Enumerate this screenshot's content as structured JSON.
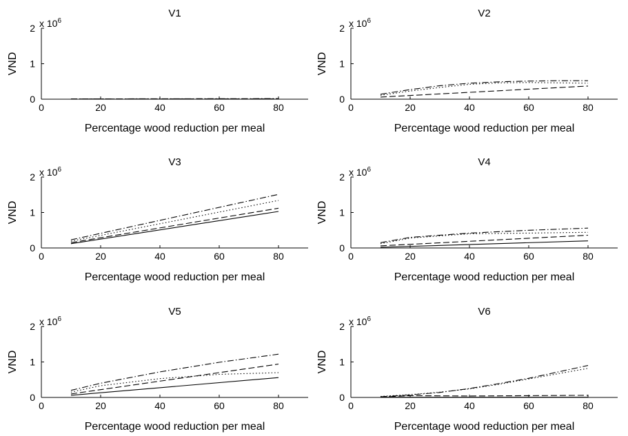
{
  "figure": {
    "scale_label": "x 10",
    "scale_exponent": "6"
  },
  "chart_data": [
    {
      "type": "line",
      "title": "V1",
      "xlabel": "Percentage wood reduction per meal",
      "ylabel": "VND",
      "xlim": [
        0,
        90
      ],
      "ylim": [
        0,
        2000000
      ],
      "xticks": [
        "0",
        "20",
        "40",
        "60",
        "80"
      ],
      "yticks": [
        "0",
        "1",
        "2"
      ],
      "series": [
        {
          "style": "dashed",
          "x": [
            10,
            80
          ],
          "y": [
            5000,
            10000
          ]
        },
        {
          "style": "dashdot",
          "x": [
            10,
            80
          ],
          "y": [
            8000,
            15000
          ]
        }
      ]
    },
    {
      "type": "line",
      "title": "V2",
      "xlabel": "Percentage wood reduction per meal",
      "ylabel": "VND",
      "xlim": [
        0,
        90
      ],
      "ylim": [
        0,
        2000000
      ],
      "xticks": [
        "0",
        "20",
        "40",
        "60",
        "80"
      ],
      "yticks": [
        "0",
        "1",
        "2"
      ],
      "series": [
        {
          "style": "dashed",
          "x": [
            10,
            80
          ],
          "y": [
            60000,
            370000
          ]
        },
        {
          "style": "dotted",
          "x": [
            10,
            20,
            30,
            40,
            50,
            60,
            70,
            80
          ],
          "y": [
            110000,
            230000,
            330000,
            420000,
            460000,
            470000,
            460000,
            450000
          ]
        },
        {
          "style": "dashdot",
          "x": [
            10,
            20,
            30,
            40,
            50,
            60,
            70,
            80
          ],
          "y": [
            140000,
            270000,
            380000,
            450000,
            490000,
            510000,
            520000,
            520000
          ]
        }
      ]
    },
    {
      "type": "line",
      "title": "V3",
      "xlabel": "Percentage wood reduction per meal",
      "ylabel": "VND",
      "xlim": [
        0,
        90
      ],
      "ylim": [
        0,
        2000000
      ],
      "xticks": [
        "0",
        "20",
        "40",
        "60",
        "80"
      ],
      "yticks": [
        "0",
        "1",
        "2"
      ],
      "series": [
        {
          "style": "solid",
          "x": [
            10,
            80
          ],
          "y": [
            120000,
            1030000
          ]
        },
        {
          "style": "dashed",
          "x": [
            10,
            80
          ],
          "y": [
            150000,
            1120000
          ]
        },
        {
          "style": "dotted",
          "x": [
            10,
            80
          ],
          "y": [
            190000,
            1340000
          ]
        },
        {
          "style": "dashdot",
          "x": [
            10,
            80
          ],
          "y": [
            230000,
            1510000
          ]
        }
      ]
    },
    {
      "type": "line",
      "title": "V4",
      "xlabel": "Percentage wood reduction per meal",
      "ylabel": "VND",
      "xlim": [
        0,
        90
      ],
      "ylim": [
        0,
        2000000
      ],
      "xticks": [
        "0",
        "20",
        "40",
        "60",
        "80"
      ],
      "yticks": [
        "0",
        "1",
        "2"
      ],
      "series": [
        {
          "style": "solid",
          "x": [
            10,
            80
          ],
          "y": [
            20000,
            200000
          ]
        },
        {
          "style": "dashed",
          "x": [
            10,
            80
          ],
          "y": [
            60000,
            360000
          ]
        },
        {
          "style": "dotted",
          "x": [
            10,
            20,
            40,
            60,
            80
          ],
          "y": [
            120000,
            280000,
            400000,
            420000,
            440000
          ]
        },
        {
          "style": "dashdot",
          "x": [
            10,
            20,
            40,
            60,
            80
          ],
          "y": [
            150000,
            300000,
            420000,
            500000,
            560000
          ]
        }
      ]
    },
    {
      "type": "line",
      "title": "V5",
      "xlabel": "Percentage wood reduction per meal",
      "ylabel": "VND",
      "xlim": [
        0,
        90
      ],
      "ylim": [
        0,
        2000000
      ],
      "xticks": [
        "0",
        "20",
        "40",
        "60",
        "80"
      ],
      "yticks": [
        "0",
        "1",
        "2"
      ],
      "series": [
        {
          "style": "solid",
          "x": [
            10,
            80
          ],
          "y": [
            60000,
            560000
          ]
        },
        {
          "style": "dashed",
          "x": [
            10,
            80
          ],
          "y": [
            100000,
            940000
          ]
        },
        {
          "style": "dotted",
          "x": [
            10,
            20,
            40,
            60,
            80
          ],
          "y": [
            150000,
            330000,
            530000,
            650000,
            700000
          ]
        },
        {
          "style": "dashdot",
          "x": [
            10,
            20,
            40,
            60,
            80
          ],
          "y": [
            200000,
            400000,
            720000,
            990000,
            1220000
          ]
        }
      ]
    },
    {
      "type": "line",
      "title": "V6",
      "xlabel": "Percentage wood reduction per meal",
      "ylabel": "VND",
      "xlim": [
        0,
        90
      ],
      "ylim": [
        0,
        2000000
      ],
      "xticks": [
        "0",
        "20",
        "40",
        "60",
        "80"
      ],
      "yticks": [
        "0",
        "1",
        "2"
      ],
      "series": [
        {
          "style": "solid",
          "x": [
            10,
            80
          ],
          "y": [
            5000,
            5000
          ]
        },
        {
          "style": "dashed",
          "x": [
            10,
            20,
            40,
            60,
            80
          ],
          "y": [
            10000,
            50000,
            40000,
            50000,
            60000
          ]
        },
        {
          "style": "dotted",
          "x": [
            10,
            20,
            30,
            40,
            50,
            60,
            70,
            80
          ],
          "y": [
            30000,
            80000,
            150000,
            240000,
            370000,
            520000,
            670000,
            820000
          ]
        },
        {
          "style": "dashdot",
          "x": [
            10,
            20,
            30,
            40,
            50,
            60,
            70,
            80
          ],
          "y": [
            20000,
            70000,
            140000,
            250000,
            390000,
            540000,
            720000,
            900000
          ]
        }
      ]
    }
  ]
}
